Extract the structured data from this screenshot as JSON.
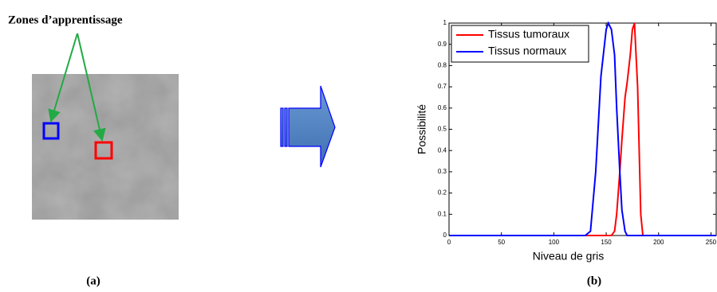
{
  "panel_a": {
    "label": "Zones d’apprentissage",
    "caption": "(a)"
  },
  "panel_b": {
    "caption": "(b)"
  },
  "chart_data": {
    "type": "line",
    "xlabel": "Niveau de gris",
    "ylabel": "Possibilité",
    "x": [
      0,
      120,
      130,
      135,
      140,
      145,
      150,
      152,
      155,
      158,
      160,
      163,
      165,
      168,
      170,
      173,
      175,
      177,
      180,
      183,
      185,
      200,
      255
    ],
    "series": [
      {
        "name": "Tissus tumoraux",
        "color": "#ff0000",
        "values": [
          0,
          0,
          0,
          0,
          0,
          0,
          0,
          0,
          0,
          0.02,
          0.1,
          0.3,
          0.45,
          0.65,
          0.72,
          0.85,
          0.97,
          1,
          0.7,
          0.1,
          0,
          0,
          0
        ]
      },
      {
        "name": "Tissus normaux",
        "color": "#0000ff",
        "values": [
          0,
          0,
          0,
          0.02,
          0.3,
          0.75,
          0.97,
          1,
          0.97,
          0.85,
          0.6,
          0.3,
          0.12,
          0.02,
          0,
          0,
          0,
          0,
          0,
          0,
          0,
          0,
          0
        ]
      }
    ],
    "xlim": [
      0,
      255
    ],
    "xticks": [
      0,
      50,
      100,
      150,
      200,
      250
    ],
    "ylim": [
      0,
      1
    ],
    "yticks": [
      0,
      0.1,
      0.2,
      0.3,
      0.4,
      0.5,
      0.6,
      0.7,
      0.8,
      0.9,
      1
    ],
    "legend": "upper left"
  }
}
